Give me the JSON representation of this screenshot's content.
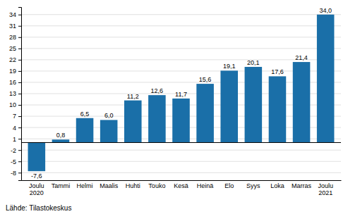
{
  "chart_data": {
    "type": "bar",
    "categories": [
      "Joulu\n2020",
      "Tammi",
      "Helmi",
      "Maalis",
      "Huhti",
      "Touko",
      "Kesä",
      "Heinä",
      "Elo",
      "Syys",
      "Loka",
      "Marras",
      "Joulu\n2021"
    ],
    "values": [
      -7.6,
      0.8,
      6.5,
      6.0,
      11.2,
      12.6,
      11.7,
      15.6,
      19.1,
      20.1,
      17.6,
      21.4,
      34.0
    ],
    "value_labels": [
      "-7,6",
      "0,8",
      "6,5",
      "6,0",
      "11,2",
      "12,6",
      "11,7",
      "15,6",
      "19,1",
      "20,1",
      "17,6",
      "21,4",
      "34,0"
    ],
    "data_labels": true,
    "color": "#1a6fa8",
    "ylim": [
      -10,
      36
    ],
    "yticks": [
      -8,
      -5,
      -2,
      1,
      4,
      7,
      10,
      13,
      16,
      19,
      22,
      25,
      28,
      31,
      34
    ],
    "grid": true,
    "annotations": [
      "Lähde: Tilastokeskus"
    ]
  }
}
